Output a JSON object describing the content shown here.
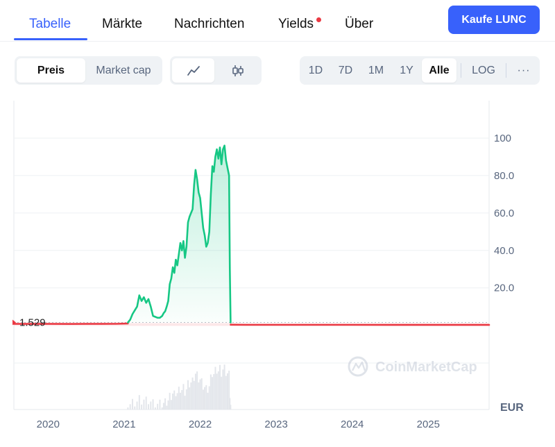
{
  "tabs": [
    {
      "label": "Tabelle",
      "active": true
    },
    {
      "label": "Märkte",
      "active": false
    },
    {
      "label": "Nachrichten",
      "active": false
    },
    {
      "label": "Yields",
      "active": false,
      "notification": true
    },
    {
      "label": "Über",
      "active": false
    }
  ],
  "buy_button": "Kaufe LUNC",
  "metric_toggle": {
    "options": [
      "Preis",
      "Market cap"
    ],
    "selected": "Preis"
  },
  "chart_style_toggle": {
    "options": [
      "line-chart-icon",
      "candlestick-icon"
    ],
    "selected": "line-chart-icon"
  },
  "range_toggle": {
    "options": [
      "1D",
      "7D",
      "1M",
      "1Y",
      "Alle"
    ],
    "selected": "Alle",
    "log_label": "LOG",
    "more_label": "···"
  },
  "colors": {
    "accent": "#3861fb",
    "line_up": "#16c784",
    "line_down": "#ea3943",
    "notification": "#ea3943"
  },
  "watermark": "CoinMarketCap",
  "chart_data": {
    "type": "line",
    "x_unit": "year",
    "y_unit": "EUR",
    "yticks": [
      "100",
      "80.0",
      "60.0",
      "40.0",
      "20.0"
    ],
    "ytick_values": [
      100,
      80,
      60,
      40,
      20
    ],
    "xticks": [
      "2020",
      "2021",
      "2022",
      "2023",
      "2024",
      "2025"
    ],
    "xtick_values": [
      2020,
      2021,
      2022,
      2023,
      2024,
      2025
    ],
    "xlim": [
      2019.55,
      2025.8
    ],
    "ylim": [
      -45,
      120
    ],
    "reference_price": 1.529,
    "reference_label": "1.529",
    "grid": true,
    "series": [
      {
        "color_key": "line_down",
        "x": [
          2019.55,
          2020.0,
          2020.3,
          2020.5,
          2020.7,
          2020.9,
          2021.05
        ],
        "y": [
          0.75,
          0.74,
          0.73,
          0.76,
          0.74,
          0.78,
          0.95
        ]
      },
      {
        "color_key": "line_up",
        "x": [
          2021.05,
          2021.08,
          2021.11,
          2021.14,
          2021.17,
          2021.2,
          2021.23,
          2021.26,
          2021.29,
          2021.32,
          2021.35,
          2021.38,
          2021.41,
          2021.44,
          2021.47,
          2021.5,
          2021.52,
          2021.54,
          2021.56,
          2021.58,
          2021.6,
          2021.62,
          2021.64,
          2021.66,
          2021.68,
          2021.7,
          2021.72,
          2021.74,
          2021.76,
          2021.78,
          2021.8,
          2021.82,
          2021.84,
          2021.86,
          2021.88,
          2021.9,
          2021.92,
          2021.94,
          2021.96,
          2021.98,
          2022.0,
          2022.02,
          2022.04,
          2022.06,
          2022.08,
          2022.1,
          2022.12,
          2022.14,
          2022.16,
          2022.18,
          2022.2,
          2022.22,
          2022.24,
          2022.26,
          2022.28,
          2022.3,
          2022.32,
          2022.34,
          2022.36,
          2022.38,
          2022.39,
          2022.4
        ],
        "y": [
          1.5,
          3,
          6,
          8,
          10,
          16,
          13,
          15,
          12,
          14,
          10,
          5,
          4.5,
          4,
          4,
          5,
          6.5,
          7.5,
          10,
          13,
          22,
          25,
          31,
          28,
          35,
          32,
          38,
          44,
          40,
          45,
          36,
          42,
          55,
          58,
          60,
          62,
          75,
          83,
          78,
          71,
          68,
          60,
          52,
          48,
          42,
          44,
          50,
          70,
          85,
          82,
          90,
          94,
          89,
          95,
          86,
          94,
          96,
          88,
          84,
          80,
          30,
          1.5
        ]
      },
      {
        "color_key": "line_down",
        "x": [
          2022.4,
          2022.6,
          2023.0,
          2023.5,
          2024.0,
          2024.5,
          2025.0,
          2025.5,
          2025.8
        ],
        "y": [
          0.3,
          0.25,
          0.25,
          0.22,
          0.22,
          0.2,
          0.2,
          0.2,
          0.2
        ]
      }
    ]
  }
}
